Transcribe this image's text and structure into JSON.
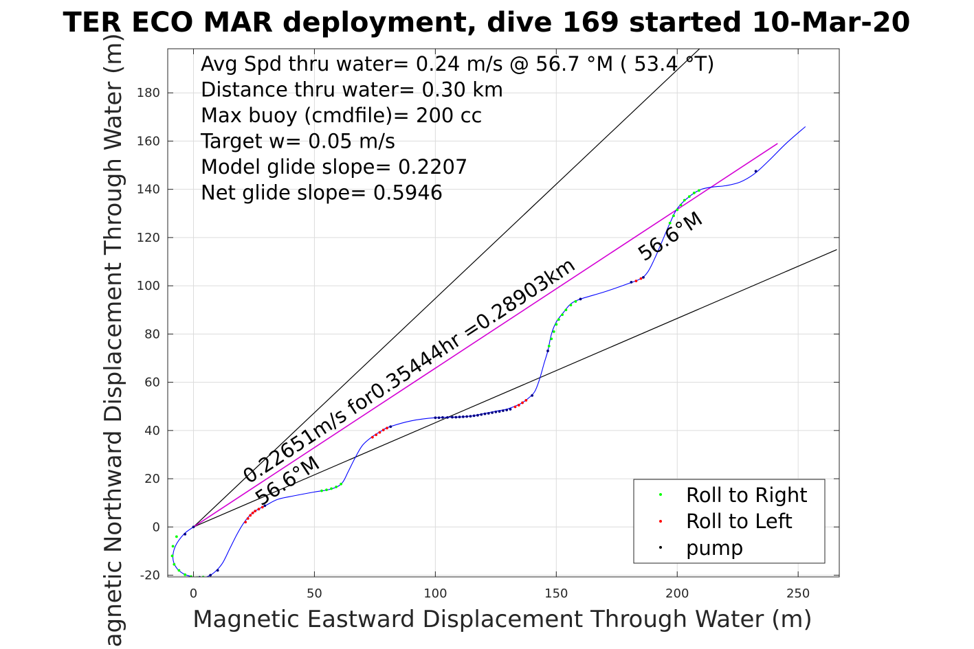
{
  "chart_data": {
    "type": "line",
    "title": "TER ECO MAR deployment, dive 169 started 10-Mar-20",
    "xlabel": "Magnetic Eastward Displacement Through Water (m)",
    "ylabel": "Magnetic Northward Displacement Through Water (m)",
    "xlim": [
      -10,
      266
    ],
    "ylim": [
      -21,
      199
    ],
    "xticks": [
      0,
      50,
      100,
      150,
      200,
      250
    ],
    "yticks": [
      -20,
      0,
      20,
      40,
      60,
      80,
      100,
      120,
      140,
      160,
      180
    ],
    "grid": true,
    "colors": {
      "track": "#0000ff",
      "roll_right": "#00ff00",
      "roll_left": "#ff0000",
      "pump": "#000080",
      "mean_line": "#d400d4",
      "guide": "#000000"
    },
    "info_lines": [
      "Avg Spd thru water=  0.24 m/s @  56.7 °M ( 53.4 °T)",
      "Distance thru water=  0.30 km",
      "Max buoy (cmdfile)= 200 cc",
      "Target w= 0.05 m/s",
      "Model glide slope= 0.2207",
      "Net glide slope= 0.5946"
    ],
    "annotations": {
      "speed_label": "0.22651m/s for0.35444hr =0.28903km",
      "heading_label_start": "56.6°M",
      "heading_label_end": "56.6°M"
    },
    "legend": {
      "location": "bottom-right",
      "entries": [
        "Roll to Right",
        "Roll to Left",
        "pump"
      ]
    },
    "track": [
      [
        0,
        0
      ],
      [
        -4,
        -3
      ],
      [
        -7.5,
        -8
      ],
      [
        -8.5,
        -13
      ],
      [
        -7,
        -17
      ],
      [
        -4,
        -19.5
      ],
      [
        0,
        -20.8
      ],
      [
        3,
        -21
      ],
      [
        6,
        -20.5
      ],
      [
        9,
        -18.5
      ],
      [
        12,
        -15
      ],
      [
        15,
        -9
      ],
      [
        18,
        -3
      ],
      [
        21,
        2
      ],
      [
        24,
        5.5
      ],
      [
        27,
        7.5
      ],
      [
        30,
        9
      ],
      [
        35,
        11.5
      ],
      [
        42,
        13
      ],
      [
        50,
        14.5
      ],
      [
        56,
        15.5
      ],
      [
        60,
        17
      ],
      [
        62,
        19
      ],
      [
        64,
        23
      ],
      [
        67,
        29
      ],
      [
        70,
        34
      ],
      [
        74,
        37.5
      ],
      [
        78,
        40
      ],
      [
        81,
        41.5
      ],
      [
        90,
        44
      ],
      [
        100,
        45.3
      ],
      [
        110,
        45.6
      ],
      [
        115,
        46
      ],
      [
        120,
        47
      ],
      [
        125,
        48
      ],
      [
        130,
        49
      ],
      [
        135,
        51
      ],
      [
        138,
        53
      ],
      [
        141,
        56
      ],
      [
        143,
        61
      ],
      [
        145,
        68
      ],
      [
        146.5,
        73
      ],
      [
        148,
        80
      ],
      [
        150,
        85
      ],
      [
        153,
        89
      ],
      [
        156,
        92.5
      ],
      [
        160,
        94.5
      ],
      [
        170,
        97.5
      ],
      [
        180,
        101
      ],
      [
        185,
        103
      ],
      [
        188,
        106
      ],
      [
        191,
        112
      ],
      [
        194,
        119
      ],
      [
        197,
        126
      ],
      [
        200,
        132
      ],
      [
        205,
        137
      ],
      [
        210,
        140
      ],
      [
        215,
        141
      ],
      [
        220,
        141.5
      ],
      [
        226,
        143
      ],
      [
        232,
        146.5
      ],
      [
        238,
        152
      ],
      [
        245,
        159
      ],
      [
        253,
        166
      ]
    ],
    "mean_track_end": [
      241.5,
      159
    ],
    "guide_lines": [
      {
        "from": [
          0,
          0
        ],
        "to": [
          210,
          199
        ]
      },
      {
        "from": [
          0,
          0
        ],
        "to": [
          266,
          115
        ]
      }
    ],
    "roll_right_points": [
      [
        -7,
        -4
      ],
      [
        -8.5,
        -8
      ],
      [
        -8.8,
        -12
      ],
      [
        -8,
        -15.5
      ],
      [
        -6,
        -18
      ],
      [
        -3.5,
        -19.8
      ],
      [
        -1,
        -20.6
      ],
      [
        1.5,
        -21
      ],
      [
        4,
        -20.8
      ],
      [
        53,
        15
      ],
      [
        55,
        15.4
      ],
      [
        57,
        15.9
      ],
      [
        59,
        16.6
      ],
      [
        61,
        17.8
      ],
      [
        147,
        75
      ],
      [
        148,
        78
      ],
      [
        149,
        81
      ],
      [
        150,
        84
      ],
      [
        151,
        86
      ],
      [
        152.5,
        88
      ],
      [
        154,
        90
      ],
      [
        156,
        92
      ],
      [
        158,
        93.5
      ],
      [
        197,
        126
      ],
      [
        198.5,
        129
      ],
      [
        200,
        131.5
      ],
      [
        201.5,
        133.5
      ],
      [
        203,
        135.5
      ],
      [
        205,
        137
      ],
      [
        207,
        138.5
      ],
      [
        209,
        139.5
      ]
    ],
    "roll_left_points": [
      [
        21.5,
        2
      ],
      [
        22.5,
        3.5
      ],
      [
        23.5,
        4.8
      ],
      [
        24.5,
        5.8
      ],
      [
        25.5,
        6.6
      ],
      [
        27,
        7.4
      ],
      [
        28.5,
        8.2
      ],
      [
        74,
        37.2
      ],
      [
        75.5,
        38.2
      ],
      [
        77,
        39.2
      ],
      [
        78.5,
        40.2
      ],
      [
        80,
        41
      ],
      [
        133,
        49.8
      ],
      [
        134.5,
        50.5
      ],
      [
        136,
        51.5
      ],
      [
        137.5,
        52.5
      ],
      [
        183,
        102
      ],
      [
        185,
        103
      ]
    ],
    "pump_points": [
      [
        0,
        0
      ],
      [
        -3.5,
        -3
      ],
      [
        2.5,
        -20.9
      ],
      [
        7,
        -20
      ],
      [
        10,
        -18
      ],
      [
        29.5,
        8.8
      ],
      [
        81.5,
        41.6
      ],
      [
        100,
        45.3
      ],
      [
        101.5,
        45.3
      ],
      [
        103,
        45.4
      ],
      [
        105,
        45.4
      ],
      [
        107,
        45.5
      ],
      [
        108.5,
        45.5
      ],
      [
        110,
        45.6
      ],
      [
        111.5,
        45.7
      ],
      [
        113,
        45.8
      ],
      [
        114.5,
        45.9
      ],
      [
        116,
        46.1
      ],
      [
        117.5,
        46.3
      ],
      [
        119,
        46.6
      ],
      [
        120.5,
        46.9
      ],
      [
        122,
        47.1
      ],
      [
        123.5,
        47.4
      ],
      [
        125,
        47.7
      ],
      [
        126.5,
        47.9
      ],
      [
        128,
        48.2
      ],
      [
        129.5,
        48.5
      ],
      [
        131,
        48.8
      ],
      [
        140,
        54.5
      ],
      [
        146.5,
        73
      ],
      [
        160,
        94.5
      ],
      [
        181,
        101.5
      ],
      [
        186,
        103.5
      ],
      [
        232.5,
        147.5
      ]
    ]
  }
}
